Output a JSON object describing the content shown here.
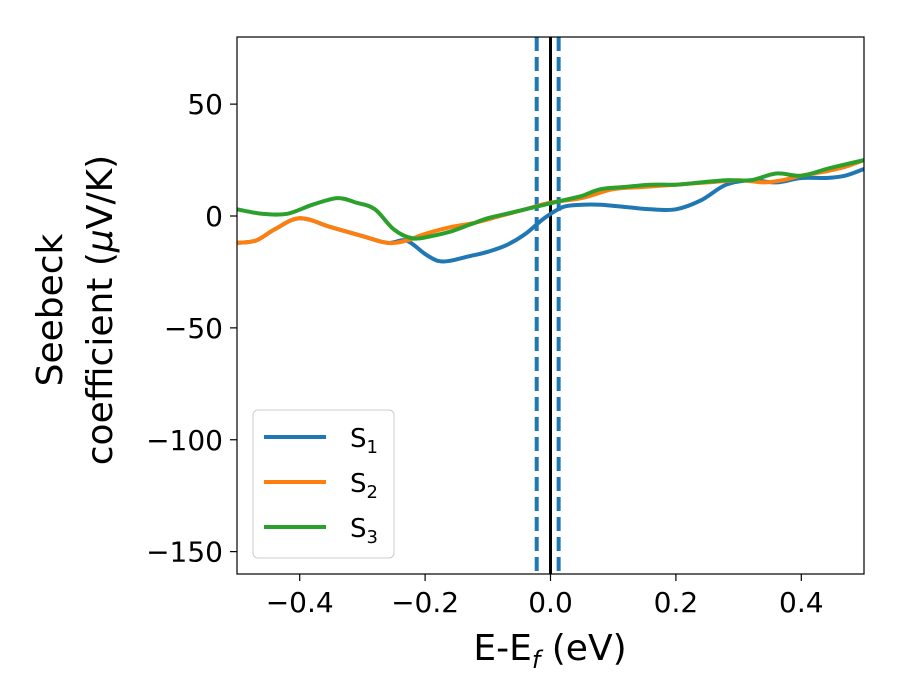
{
  "chart_data": {
    "type": "line",
    "xlabel": {
      "main": "E-E",
      "sub": "f",
      "unit": " (eV)"
    },
    "ylabel": {
      "line1": "Seebeck",
      "line2_text": "coefficient  (",
      "line2_mu": "μ",
      "line2_end": "V/K)"
    },
    "xlim": [
      -0.5,
      0.5
    ],
    "ylim": [
      -160,
      80
    ],
    "xticks": [
      -0.4,
      -0.2,
      0.0,
      0.2,
      0.4
    ],
    "xtick_labels": [
      "−0.4",
      "−0.2",
      "0.0",
      "0.2",
      "0.4"
    ],
    "yticks": [
      50,
      0,
      -50,
      -100,
      -150
    ],
    "ytick_labels": [
      "50",
      "0",
      "−50",
      "−100",
      "−150"
    ],
    "vlines": [
      {
        "x": -0.022,
        "style": "dashed",
        "color": "#1f77b4"
      },
      {
        "x": 0.013,
        "style": "dashed",
        "color": "#1f77b4"
      },
      {
        "x": 0.0,
        "style": "solid",
        "color": "#000000"
      }
    ],
    "legend_position": "lower-left",
    "series": [
      {
        "name": "S",
        "sub": "1",
        "color": "#1f77b4",
        "x": [
          -0.5,
          -0.47,
          -0.44,
          -0.4,
          -0.35,
          -0.3,
          -0.26,
          -0.23,
          -0.2,
          -0.18,
          -0.16,
          -0.13,
          -0.1,
          -0.07,
          -0.04,
          -0.01,
          0.02,
          0.05,
          0.08,
          0.12,
          0.16,
          0.2,
          0.24,
          0.28,
          0.32,
          0.36,
          0.4,
          0.44,
          0.47,
          0.5
        ],
        "y": [
          -12,
          -11,
          -6,
          -1,
          -5,
          -9,
          -12,
          -11,
          -17,
          -20,
          -20,
          -18,
          -16,
          -13,
          -8,
          -1,
          4,
          5,
          5,
          4,
          3,
          3,
          7,
          14,
          16,
          15,
          17,
          17,
          18,
          21
        ]
      },
      {
        "name": "S",
        "sub": "2",
        "color": "#ff7f0e",
        "x": [
          -0.5,
          -0.47,
          -0.44,
          -0.4,
          -0.35,
          -0.3,
          -0.26,
          -0.23,
          -0.2,
          -0.16,
          -0.12,
          -0.08,
          -0.04,
          0.0,
          0.05,
          0.1,
          0.15,
          0.2,
          0.25,
          0.3,
          0.34,
          0.37,
          0.4,
          0.44,
          0.47,
          0.5
        ],
        "y": [
          -12,
          -11,
          -6,
          -1,
          -5,
          -9,
          -12,
          -11,
          -8,
          -5,
          -3,
          0,
          3,
          6,
          8,
          12,
          13,
          14,
          15,
          16,
          15,
          16,
          18,
          20,
          22,
          25
        ]
      },
      {
        "name": "S",
        "sub": "3",
        "color": "#2ca02c",
        "x": [
          -0.5,
          -0.46,
          -0.42,
          -0.38,
          -0.34,
          -0.31,
          -0.28,
          -0.25,
          -0.22,
          -0.19,
          -0.16,
          -0.13,
          -0.1,
          -0.07,
          -0.04,
          -0.01,
          0.02,
          0.05,
          0.08,
          0.12,
          0.16,
          0.2,
          0.24,
          0.28,
          0.32,
          0.36,
          0.4,
          0.44,
          0.47,
          0.5
        ],
        "y": [
          3,
          1,
          1,
          5,
          8,
          6,
          3,
          -6,
          -10,
          -9,
          -7,
          -4,
          -1,
          1,
          3,
          5,
          7,
          9,
          12,
          13,
          14,
          14,
          15,
          16,
          16,
          19,
          18,
          21,
          23,
          25
        ]
      }
    ]
  }
}
